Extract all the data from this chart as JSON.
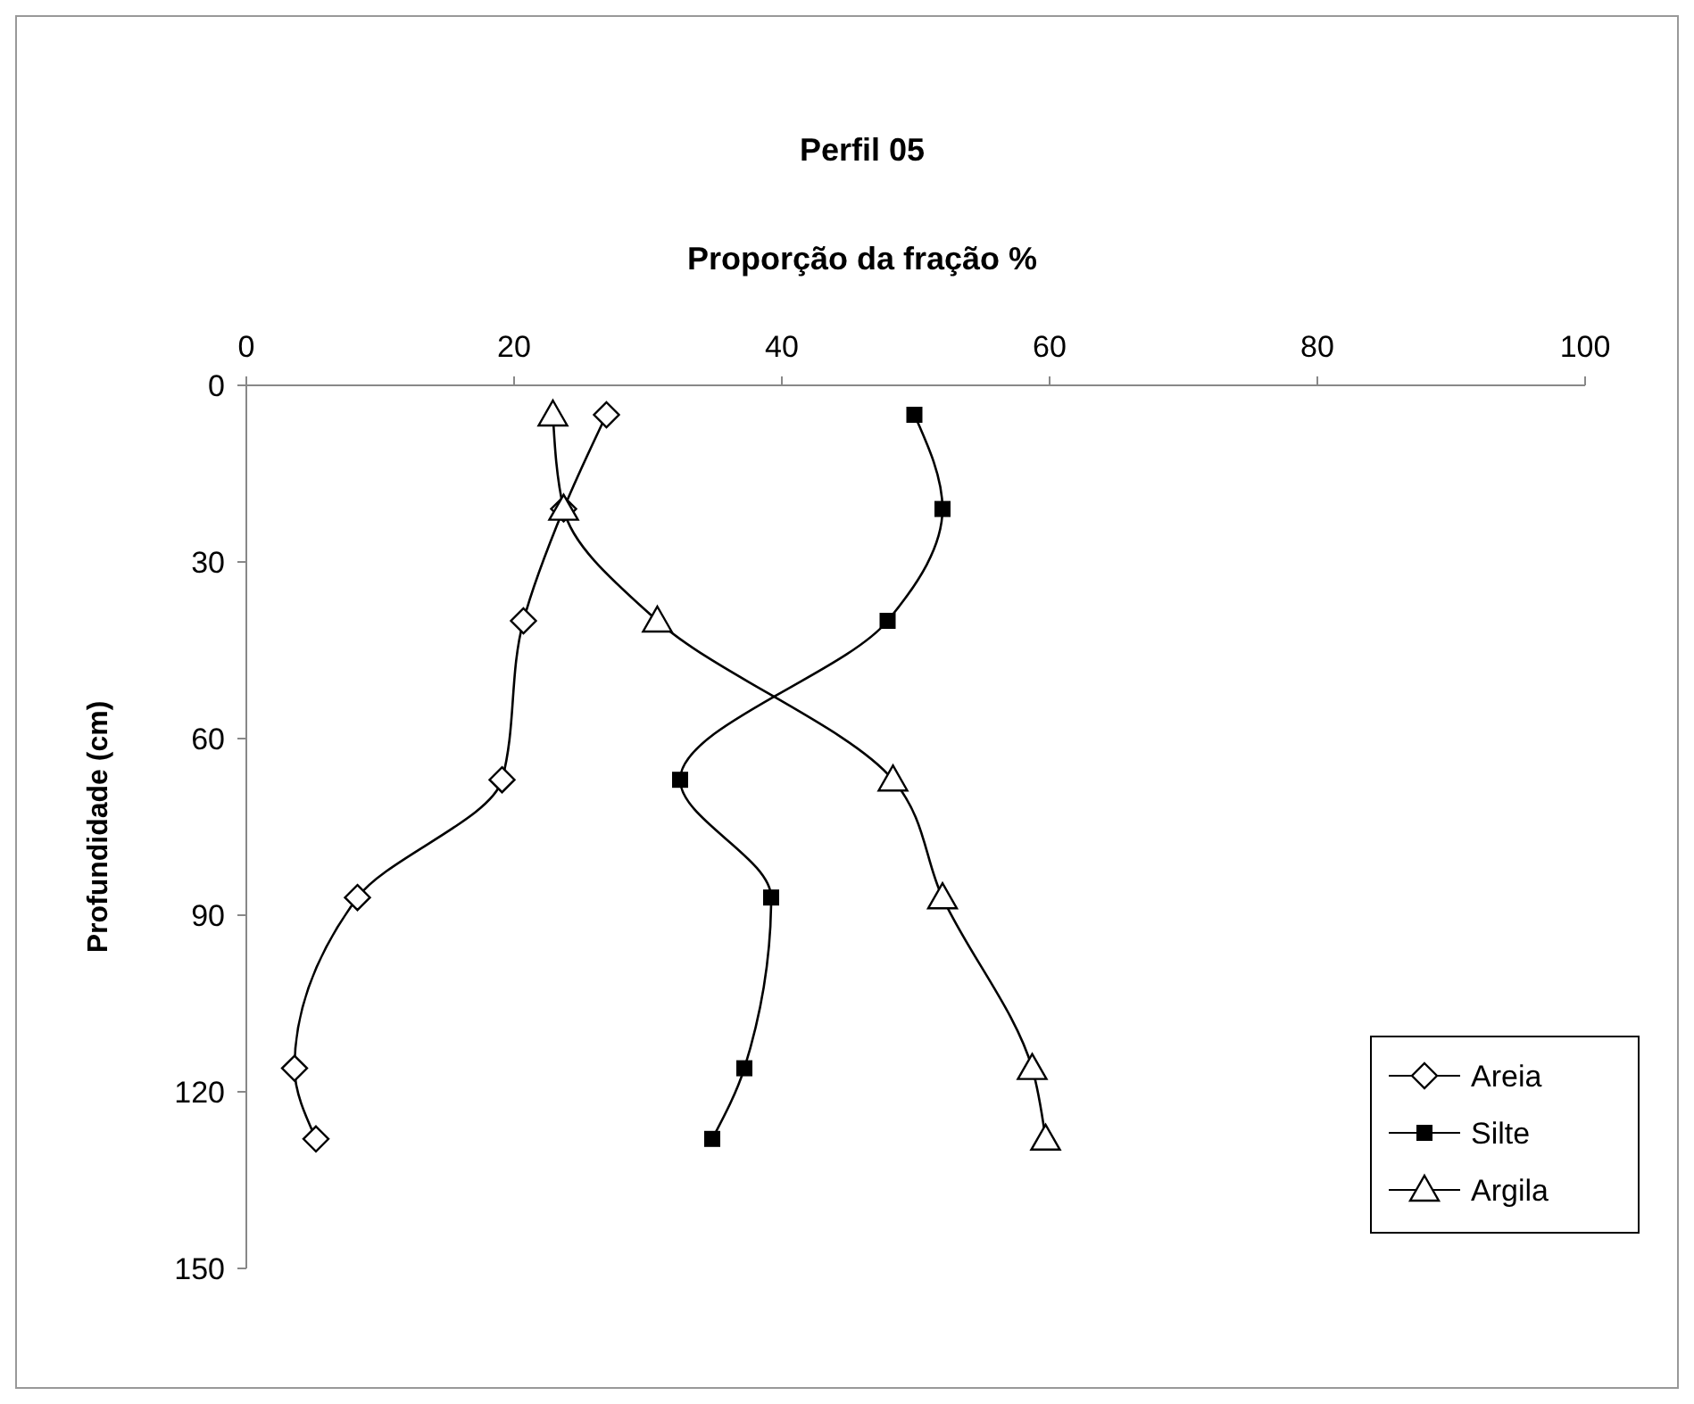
{
  "chart_data": {
    "type": "line",
    "title": "Perfil 05",
    "xlabel": "Proporção da fração %",
    "ylabel": "Profundidade (cm)",
    "xlim": [
      0,
      100
    ],
    "xticks": [
      0,
      20,
      40,
      60,
      80,
      100
    ],
    "ylim": [
      150,
      0
    ],
    "yticks": [
      0,
      30,
      60,
      90,
      120,
      150
    ],
    "grid": false,
    "legend": "bottom right",
    "line_style": "solid",
    "series": [
      {
        "name": "Areia",
        "color": "#000000",
        "marker": "diamond",
        "x": [
          26.9,
          23.7,
          20.7,
          19.1,
          8.3,
          3.6,
          5.2
        ],
        "values": [
          5,
          21,
          40,
          67,
          87,
          116,
          128
        ]
      },
      {
        "name": "Silte",
        "color": "#000000",
        "marker": "square",
        "x": [
          49.9,
          52,
          47.9,
          32.4,
          39.2,
          37.2,
          34.8
        ],
        "values": [
          5,
          21,
          40,
          67,
          87,
          116,
          128
        ]
      },
      {
        "name": "Argila",
        "color": "#000000",
        "marker": "triangle",
        "x": [
          22.9,
          23.7,
          30.7,
          48.3,
          52,
          58.7,
          59.7
        ],
        "values": [
          5,
          21,
          40,
          67,
          87,
          116,
          128
        ]
      }
    ]
  }
}
